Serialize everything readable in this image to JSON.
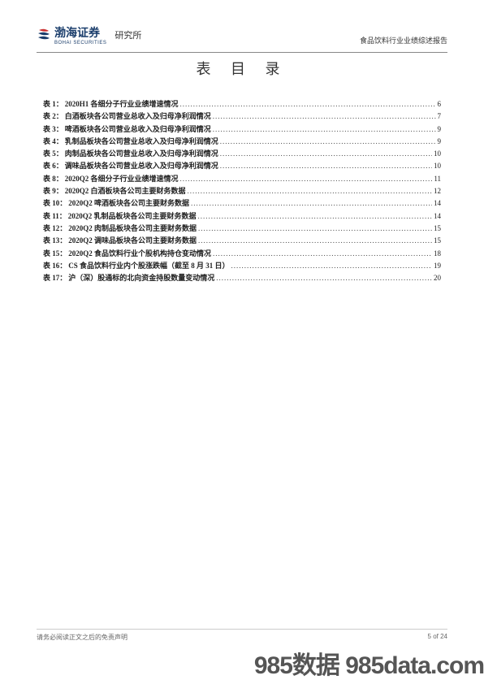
{
  "header": {
    "logo_cn": "渤海证券",
    "logo_en": "BOHAI SECURITIES",
    "research": "研究所",
    "right_text": "食品饮料行业业绩综述报告"
  },
  "title": "表 目 录",
  "toc": [
    {
      "label": "表 1：",
      "name": "2020H1 各细分子行业业绩增速情况",
      "page": "6"
    },
    {
      "label": "表 2：",
      "name": "白酒板块各公司营业总收入及归母净利润情况",
      "page": "7"
    },
    {
      "label": "表 3：",
      "name": "啤酒板块各公司营业总收入及归母净利润情况",
      "page": "9"
    },
    {
      "label": "表 4：",
      "name": "乳制品板块各公司营业总收入及归母净利润情况",
      "page": "9"
    },
    {
      "label": "表 5：",
      "name": "肉制品板块各公司营业总收入及归母净利润情况",
      "page": "10"
    },
    {
      "label": "表 6：",
      "name": "调味品板块各公司营业总收入及归母净利润情况",
      "page": "10"
    },
    {
      "label": "表 8：",
      "name": "2020Q2 各细分子行业业绩增速情况",
      "page": "11"
    },
    {
      "label": "表 9：",
      "name": "2020Q2 白酒板块各公司主要财务数据",
      "page": "12"
    },
    {
      "label": "表 10：",
      "name": " 2020Q2 啤酒板块各公司主要财务数据",
      "page": "14"
    },
    {
      "label": "表 11：",
      "name": "2020Q2 乳制品板块各公司主要财务数据",
      "page": "14"
    },
    {
      "label": "表 12：",
      "name": "2020Q2 肉制品板块各公司主要财务数据",
      "page": "15"
    },
    {
      "label": "表 13：",
      "name": "2020Q2 调味品板块各公司主要财务数据",
      "page": "15"
    },
    {
      "label": "表 15：",
      "name": "2020Q2 食品饮料行业个股机构持仓变动情况",
      "page": "18"
    },
    {
      "label": "表 16：",
      "name": "CS 食品饮料行业内个股涨跌幅（截至 8 月 31 日）",
      "page": "19"
    },
    {
      "label": "表 17：",
      "name": "沪（深）股通标的北向资金持股数量变动情况",
      "page": "20"
    }
  ],
  "footer": {
    "left": "请务必阅读正文之后的免责声明",
    "right": "5 of 24"
  },
  "watermark": "985数据 985data.com",
  "colors": {
    "logo_blue": "#1a3d6b",
    "logo_red": "#c93030",
    "text": "#222222",
    "footer_text": "#666666",
    "watermark": "#555555",
    "line": "#888888"
  }
}
